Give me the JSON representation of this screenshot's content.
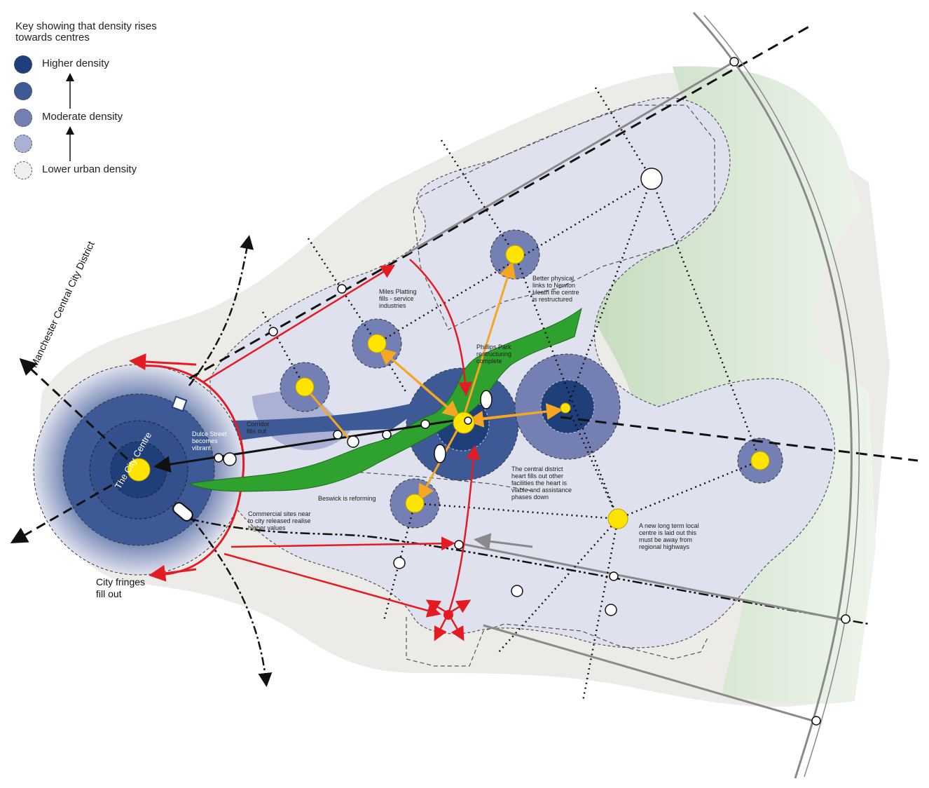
{
  "key": {
    "title": "Key showing that density rises towards centres",
    "levels": [
      {
        "label": "Higher density",
        "color": "#1f3f7a"
      },
      {
        "label": "",
        "color": "#3d5a96"
      },
      {
        "label": "Moderate density",
        "color": "#7480b3"
      },
      {
        "label": "",
        "color": "#aab1d4"
      },
      {
        "label": "Lower urban density",
        "color": "#efefef"
      }
    ]
  },
  "labels": {
    "district": "Manchester Central City District",
    "city_centre": "The City Centre",
    "city_fringes": "City fringes fill out",
    "dulce": "Dulce Street becomes vibrant",
    "corridor": "Corridor fills out",
    "miles_platting": "Miles Platting fills - service industries",
    "phillips_park": "Phillips Park restructuring complete",
    "newton_heath": "Better physical links to Newton Heath the centre is restructured",
    "central_district": "The central district heart fills out other facilities the heart is viable and assistance phases down",
    "beswick": "Beswick is reforming",
    "commercial": "Commercial sites near to city released realise higher values",
    "new_centre": "A new long term local centre is laid out this must be away from regional highways"
  },
  "colors": {
    "city_dark": "#1f3f7a",
    "city_mid": "#3d5a96",
    "moderate": "#7480b3",
    "light_zone": "#dfe1ee",
    "background_zone": "#ecebe8",
    "green": "#2fa12f",
    "park": "#d5e6cf",
    "centre_yellow": "#ffe400",
    "arrow_red": "#e31b23",
    "arrow_orange": "#f5a623"
  }
}
